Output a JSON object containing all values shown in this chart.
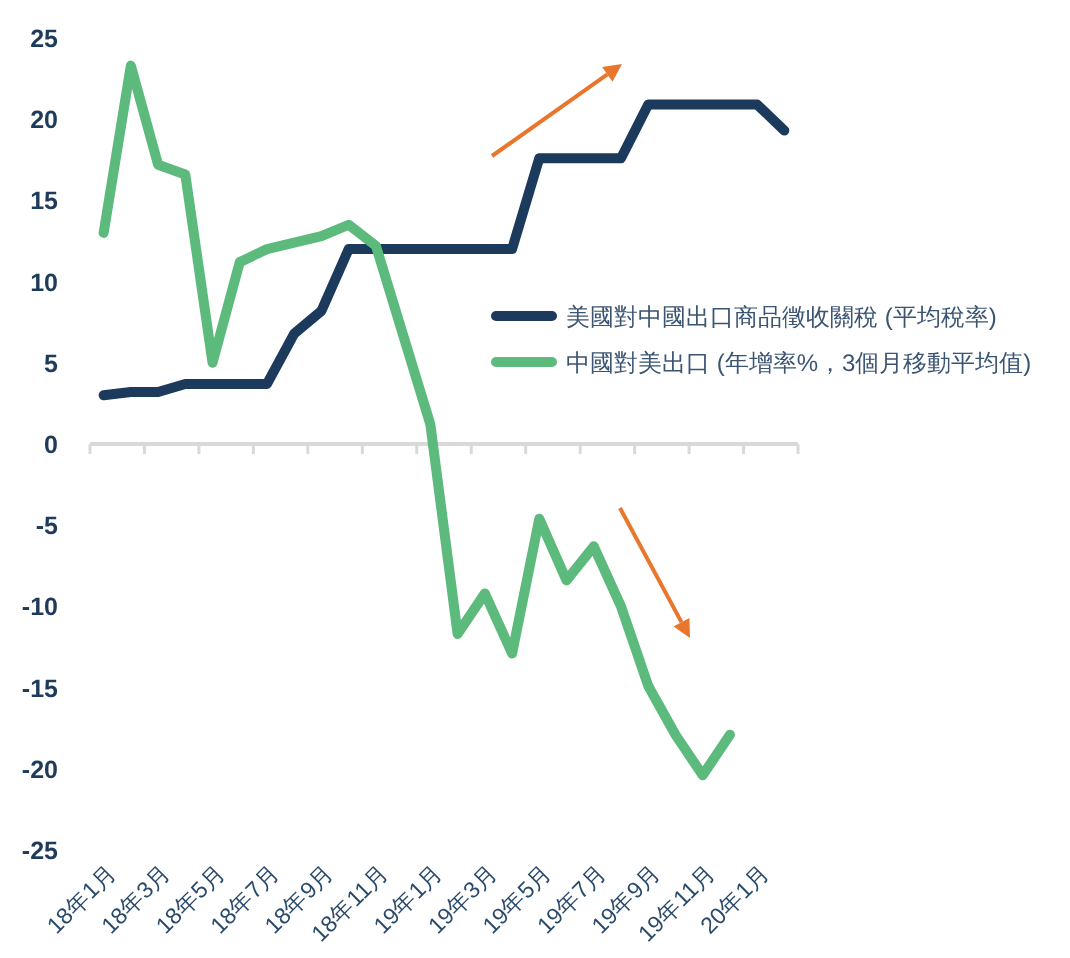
{
  "chart_data": {
    "type": "line",
    "categories": [
      "18年1月",
      null,
      "18年3月",
      null,
      "18年5月",
      null,
      "18年7月",
      null,
      "18年9月",
      null,
      "18年11月",
      null,
      "19年1月",
      null,
      "19年3月",
      null,
      "19年5月",
      null,
      "19年7月",
      null,
      "19年9月",
      null,
      "19年11月",
      null,
      "20年1月",
      null
    ],
    "series": [
      {
        "name": "美國對中國出口商品徵收關稅 (平均稅率)",
        "color": "#1b3a5c",
        "values": [
          3.0,
          3.2,
          3.2,
          3.7,
          3.7,
          3.7,
          3.7,
          6.8,
          8.2,
          12.0,
          12.0,
          12.0,
          12.0,
          12.0,
          12.0,
          12.0,
          17.6,
          17.6,
          17.6,
          17.6,
          20.9,
          20.9,
          20.9,
          20.9,
          20.9,
          19.3
        ]
      },
      {
        "name": "中國對美出口 (年增率%，3個月移動平均值)",
        "color": "#5dba7d",
        "values": [
          13.0,
          23.3,
          17.2,
          16.6,
          5.0,
          11.2,
          12.0,
          12.4,
          12.8,
          13.5,
          12.2,
          6.7,
          1.2,
          -11.7,
          -9.2,
          -12.9,
          -4.6,
          -8.4,
          -6.3,
          -10.0,
          -14.9,
          -17.9,
          -20.4,
          -17.9,
          null,
          null
        ]
      }
    ],
    "ylim": [
      -25,
      25
    ],
    "yticks": [
      25,
      20,
      15,
      10,
      5,
      0,
      -5,
      -10,
      -15,
      -20,
      -25
    ],
    "legend": "right",
    "marker": "none",
    "line_style": "solid"
  }
}
